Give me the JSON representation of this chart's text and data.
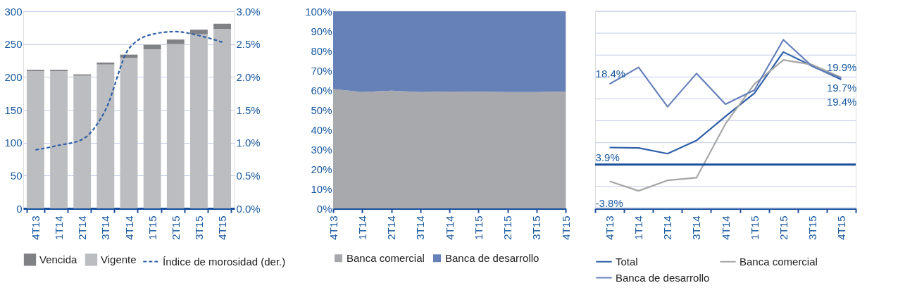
{
  "chart_data": [
    {
      "type": "bar",
      "stacked": true,
      "categories": [
        "4T13",
        "1T14",
        "2T14",
        "3T14",
        "4T14",
        "1T15",
        "2T15",
        "3T15",
        "4T15"
      ],
      "series": [
        {
          "name": "Vigente",
          "color": "#bcbdc0",
          "values": [
            209,
            209,
            202,
            219,
            229,
            242,
            250,
            265,
            273
          ]
        },
        {
          "name": "Vencida",
          "color": "#808184",
          "values": [
            2,
            2,
            2,
            3,
            5,
            7,
            7,
            7,
            8
          ]
        },
        {
          "name": "Índice de morosidad (der.)",
          "type": "line",
          "axis": "y2",
          "line_style": "dashed",
          "color": "#2e5fa8",
          "values": [
            0.89,
            0.96,
            1.05,
            1.5,
            2.43,
            2.65,
            2.69,
            2.63,
            2.53
          ]
        }
      ],
      "ylim": [
        0,
        300
      ],
      "yticks": [
        0,
        50,
        100,
        150,
        200,
        250,
        300
      ],
      "y2lim": [
        0,
        3
      ],
      "y2ticks": [
        {
          "value": 0,
          "label": "0.0%"
        },
        {
          "value": 0.5,
          "label": "0.5%"
        },
        {
          "value": 1,
          "label": "1.0%"
        },
        {
          "value": 1.5,
          "label": "1.5%"
        },
        {
          "value": 2,
          "label": "2.0%"
        },
        {
          "value": 2.5,
          "label": "2.5%"
        },
        {
          "value": 3,
          "label": "3.0%"
        }
      ],
      "grid": "y",
      "legend": "bottom"
    },
    {
      "type": "area",
      "stacked": true,
      "categories": [
        "4T13",
        "1T14",
        "2T14",
        "3T14",
        "4T14",
        "1T15",
        "2T15",
        "3T15",
        "4T15"
      ],
      "series": [
        {
          "name": "Banca comercial",
          "color": "#a8a9ad",
          "values": [
            60.5,
            59,
            59.7,
            59,
            59.3,
            59.2,
            59,
            59,
            59.3
          ]
        },
        {
          "name": "Banca de desarrollo",
          "color": "#6680b8",
          "values": [
            39.5,
            41,
            40.3,
            41,
            40.7,
            40.8,
            41,
            41,
            40.7
          ]
        }
      ],
      "ylim": [
        0,
        100
      ],
      "yticks": [
        {
          "value": 0,
          "label": "0%"
        },
        {
          "value": 10,
          "label": "10%"
        },
        {
          "value": 20,
          "label": "20%"
        },
        {
          "value": 30,
          "label": "30%"
        },
        {
          "value": 40,
          "label": "40%"
        },
        {
          "value": 50,
          "label": "50%"
        },
        {
          "value": 60,
          "label": "60%"
        },
        {
          "value": 70,
          "label": "70%"
        },
        {
          "value": 80,
          "label": "80%"
        },
        {
          "value": 90,
          "label": "90%"
        },
        {
          "value": 100,
          "label": "100%"
        }
      ],
      "grid": false,
      "legend": "bottom"
    },
    {
      "type": "line",
      "categories": [
        "4T13",
        "1T14",
        "2T14",
        "3T14",
        "4T14",
        "1T15",
        "2T15",
        "3T15",
        "4T15"
      ],
      "series": [
        {
          "name": "Total",
          "color": "#2e5fa8",
          "values": [
            3.9,
            3.8,
            2.5,
            5.5,
            11.0,
            16.3,
            25.7,
            22.5,
            19.4
          ],
          "value_labels": [
            "3.9%",
            null,
            null,
            null,
            null,
            null,
            null,
            null,
            "19.4%"
          ]
        },
        {
          "name": "Banca comercial",
          "color": "#a6a6a6",
          "values": [
            -3.8,
            -6.0,
            -3.6,
            -3.0,
            9.3,
            18.4,
            23.9,
            22.8,
            19.9
          ],
          "value_labels": [
            "-3.8%",
            null,
            null,
            null,
            null,
            null,
            null,
            null,
            "19.9%"
          ]
        },
        {
          "name": "Banca de desarrollo",
          "color": "#6680bb",
          "values": [
            18.4,
            22.2,
            13.2,
            20.8,
            13.8,
            17.0,
            28.5,
            22.4,
            19.7
          ],
          "value_labels": [
            "18.4%",
            null,
            null,
            null,
            null,
            null,
            null,
            null,
            "19.7%"
          ]
        }
      ],
      "ylim": [
        -10,
        35
      ],
      "yticks": [
        {
          "value": -10,
          "label": null
        },
        {
          "value": -5,
          "label": null
        },
        {
          "value": 0,
          "label": null
        },
        {
          "value": 5,
          "label": null
        },
        {
          "value": 10,
          "label": null
        },
        {
          "value": 15,
          "label": null
        },
        {
          "value": 20,
          "label": null
        },
        {
          "value": 25,
          "label": null
        },
        {
          "value": 30,
          "label": null
        },
        {
          "value": 35,
          "label": null
        }
      ],
      "ref_lines": [
        {
          "axis": "y",
          "value": 0,
          "color": "#1a4f9c"
        }
      ],
      "tick_labels": "x",
      "grid": "y",
      "legend": "bottom"
    }
  ]
}
